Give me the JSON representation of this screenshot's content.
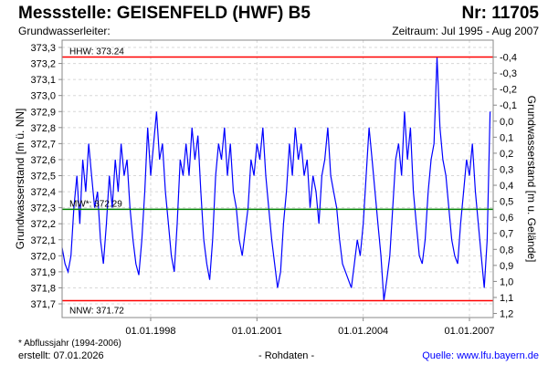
{
  "header": {
    "title": "Messstelle: GEISENFELD (HWF) B5",
    "number": "Nr: 11705",
    "subtitle": "Grundwasserleiter:",
    "period": "Zeitraum: Jul 1995 - Aug 2007"
  },
  "footer": {
    "note": "* Abflussjahr (1994-2006)",
    "created": "erstellt:  07.01.2026",
    "raw": "- Rohdaten -",
    "source": "Quelle: www.lfu.bayern.de"
  },
  "chart_data": {
    "type": "line",
    "ylabel": "Grundwasserstand [m ü. NN]",
    "ylabel_right": "Grundwasserstand [m u. Gelände]",
    "ylim": [
      371.62,
      373.36
    ],
    "yticks": [
      "371,7",
      "371,8",
      "371,9",
      "372,0",
      "372,1",
      "372,2",
      "372,3",
      "372,4",
      "372,5",
      "372,6",
      "372,7",
      "372,8",
      "372,9",
      "373,0",
      "373,1",
      "373,2",
      "373,3"
    ],
    "yticks_values": [
      371.7,
      371.8,
      371.9,
      372.0,
      372.1,
      372.2,
      372.3,
      372.4,
      372.5,
      372.6,
      372.7,
      372.8,
      372.9,
      373.0,
      373.1,
      373.2,
      373.3
    ],
    "right_reference": 372.84,
    "yticks_right": [
      "-0,4",
      "-0,3",
      "-0,2",
      "-0,1",
      "0,0",
      "0,1",
      "0,2",
      "0,3",
      "0,4",
      "0,5",
      "0,6",
      "0,7",
      "0,8",
      "0,9",
      "1,0",
      "1,1",
      "1,2"
    ],
    "yticks_right_values": [
      -0.4,
      -0.3,
      -0.2,
      -0.1,
      0.0,
      0.1,
      0.2,
      0.3,
      0.4,
      0.5,
      0.6,
      0.7,
      0.8,
      0.9,
      1.0,
      1.1,
      1.2
    ],
    "xlim": [
      1995.5,
      2007.67
    ],
    "xticks": [
      "01.01.1998",
      "01.01.2001",
      "01.01.2004",
      "01.01.2007"
    ],
    "xticks_values": [
      1998,
      2001,
      2004,
      2007
    ],
    "grid": true,
    "reference_lines": [
      {
        "label": "HHW: 373.24",
        "value": 373.24,
        "color": "#ff0000"
      },
      {
        "label": "MW*: 372.29",
        "value": 372.29,
        "color": "#008000"
      },
      {
        "label": "NNW: 371.72",
        "value": 371.72,
        "color": "#ff0000"
      }
    ],
    "series": [
      {
        "name": "Grundwasserstand",
        "color": "#0000ff",
        "start": 1995.5,
        "step_months": 1,
        "values": [
          372.05,
          371.95,
          371.9,
          372.0,
          372.3,
          372.5,
          372.2,
          372.6,
          372.4,
          372.7,
          372.5,
          372.3,
          372.4,
          372.1,
          371.95,
          372.2,
          372.5,
          372.3,
          372.6,
          372.4,
          372.7,
          372.5,
          372.6,
          372.3,
          372.1,
          371.95,
          371.88,
          372.1,
          372.4,
          372.8,
          372.5,
          372.7,
          372.9,
          372.6,
          372.7,
          372.4,
          372.2,
          372.0,
          371.9,
          372.2,
          372.6,
          372.5,
          372.7,
          372.5,
          372.8,
          372.6,
          372.75,
          372.4,
          372.1,
          371.95,
          371.85,
          372.1,
          372.5,
          372.7,
          372.6,
          372.8,
          372.5,
          372.7,
          372.4,
          372.3,
          372.1,
          372.0,
          372.15,
          372.3,
          372.6,
          372.5,
          372.7,
          372.6,
          372.8,
          372.5,
          372.3,
          372.1,
          371.95,
          371.8,
          371.9,
          372.2,
          372.4,
          372.7,
          372.5,
          372.8,
          372.6,
          372.7,
          372.5,
          372.6,
          372.3,
          372.5,
          372.4,
          372.2,
          372.5,
          372.6,
          372.8,
          372.5,
          372.4,
          372.3,
          372.1,
          371.95,
          371.9,
          371.85,
          371.8,
          371.95,
          372.1,
          372.0,
          372.2,
          372.5,
          372.8,
          372.6,
          372.4,
          372.2,
          372.0,
          371.72,
          371.85,
          372.0,
          372.3,
          372.6,
          372.7,
          372.5,
          372.9,
          372.6,
          372.8,
          372.4,
          372.2,
          372.0,
          371.95,
          372.1,
          372.4,
          372.6,
          372.7,
          373.24,
          372.8,
          372.6,
          372.5,
          372.3,
          372.1,
          372.0,
          371.95,
          372.2,
          372.4,
          372.6,
          372.5,
          372.7,
          372.4,
          372.2,
          372.0,
          371.8,
          372.1,
          372.9
        ]
      }
    ]
  }
}
